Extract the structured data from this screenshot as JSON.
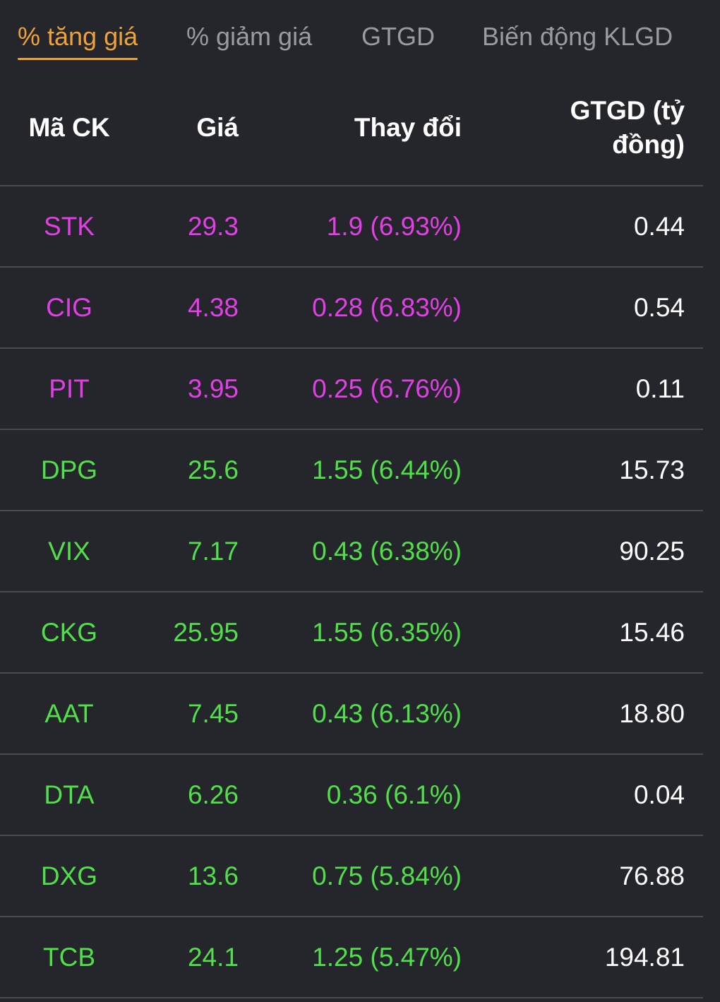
{
  "tabs": [
    {
      "label": "% tăng giá",
      "active": true
    },
    {
      "label": "% giảm giá",
      "active": false
    },
    {
      "label": "GTGD",
      "active": false
    },
    {
      "label": "Biến động KLGD",
      "active": false
    }
  ],
  "table": {
    "headers": {
      "code": "Mã CK",
      "price": "Giá",
      "change": "Thay đổi",
      "value": "GTGD (tỷ đồng)"
    },
    "rows": [
      {
        "code": "STK",
        "price": "29.3",
        "change": "1.9 (6.93%)",
        "value": "0.44",
        "status": "ceiling"
      },
      {
        "code": "CIG",
        "price": "4.38",
        "change": "0.28 (6.83%)",
        "value": "0.54",
        "status": "ceiling"
      },
      {
        "code": "PIT",
        "price": "3.95",
        "change": "0.25 (6.76%)",
        "value": "0.11",
        "status": "ceiling"
      },
      {
        "code": "DPG",
        "price": "25.6",
        "change": "1.55 (6.44%)",
        "value": "15.73",
        "status": "up"
      },
      {
        "code": "VIX",
        "price": "7.17",
        "change": "0.43 (6.38%)",
        "value": "90.25",
        "status": "up"
      },
      {
        "code": "CKG",
        "price": "25.95",
        "change": "1.55 (6.35%)",
        "value": "15.46",
        "status": "up"
      },
      {
        "code": "AAT",
        "price": "7.45",
        "change": "0.43 (6.13%)",
        "value": "18.80",
        "status": "up"
      },
      {
        "code": "DTA",
        "price": "6.26",
        "change": "0.36 (6.1%)",
        "value": "0.04",
        "status": "up"
      },
      {
        "code": "DXG",
        "price": "13.6",
        "change": "0.75 (5.84%)",
        "value": "76.88",
        "status": "up"
      },
      {
        "code": "TCB",
        "price": "24.1",
        "change": "1.25 (5.47%)",
        "value": "194.81",
        "status": "up"
      }
    ]
  },
  "colors": {
    "background": "#25262b",
    "active_tab": "#f0a23a",
    "inactive_tab": "#9a9ba1",
    "ceiling": "#e23fe6",
    "up": "#52e04a",
    "divider": "#4a4b50"
  }
}
